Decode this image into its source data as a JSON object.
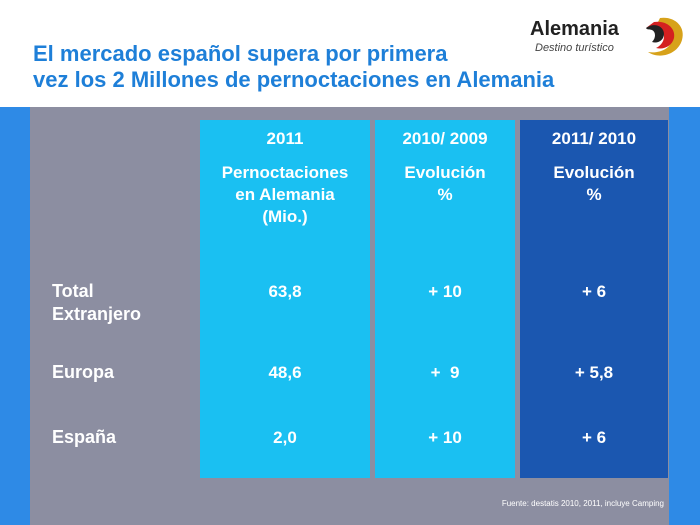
{
  "title": {
    "line1": "El mercado español supera por primera",
    "line2": "vez los 2 Millones de pernoctaciones en Alemania"
  },
  "logo": {
    "name": "Alemania",
    "tagline": "Destino turístico",
    "icon": "swirl-logo-icon"
  },
  "table": {
    "columns": [
      {
        "header_year": "2011",
        "header_line1": "Pernoctaciones",
        "header_line2": "en Alemania",
        "header_line3": "(Mio.)"
      },
      {
        "header_year": "2010/ 2009",
        "header_line1": "Evolución",
        "header_line2": "%"
      },
      {
        "header_year": "2011/ 2010",
        "header_line1": "Evolución",
        "header_line2": "%"
      }
    ],
    "rows": [
      {
        "label_line1": "Total",
        "label_line2": "Extranjero",
        "values": [
          "63,8",
          "+ 10",
          "+ 6"
        ]
      },
      {
        "label_line1": "Europa",
        "values": [
          "48,6",
          "+  9",
          "+ 5,8"
        ]
      },
      {
        "label_line1": "España",
        "values": [
          "2,0",
          "+ 10",
          "+ 6"
        ]
      }
    ]
  },
  "source": "Fuente: destatis 2010, 2011, incluye Camping",
  "colors": {
    "title": "#1e7fd8",
    "slide_blue": "#2e8ae6",
    "panel_gray": "#8c8ea1",
    "column_light": "#1ac0f2",
    "column_dark": "#1b57b0"
  }
}
